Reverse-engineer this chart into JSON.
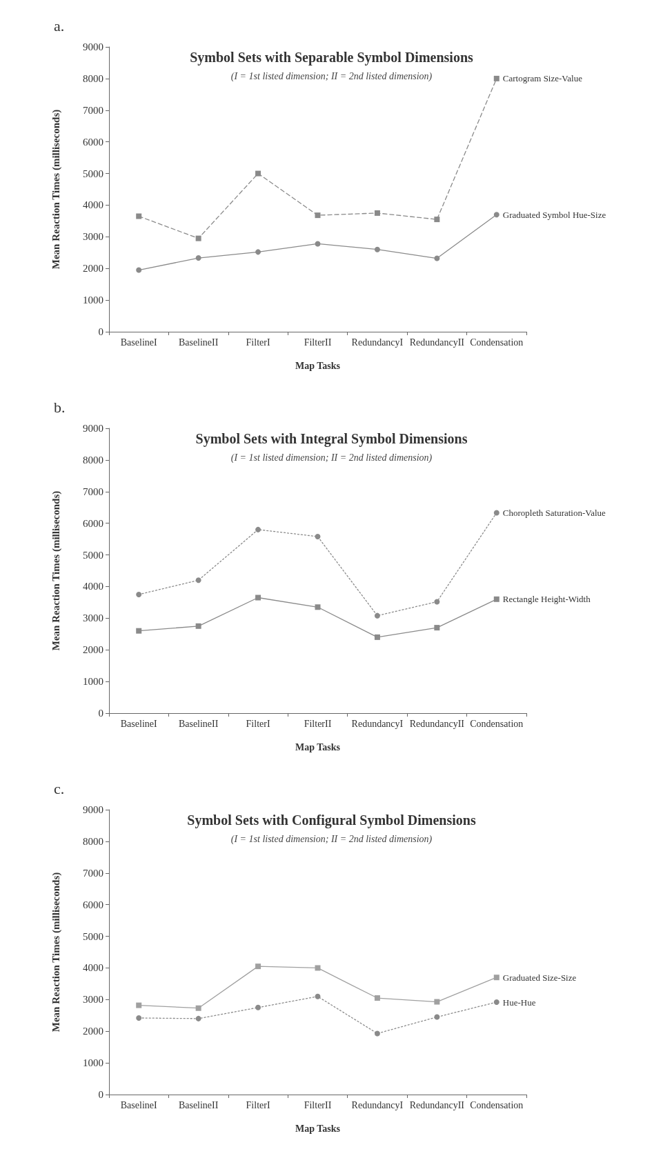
{
  "chart_data": [
    {
      "type": "line",
      "title": "Symbol Sets with Separable Symbol Dimensions",
      "subtitle": "(I = 1st listed dimension; II = 2nd listed dimension)",
      "xlabel": "Map Tasks",
      "ylabel": "Mean Reaction Times (milliseconds)",
      "annotations": [
        "a."
      ],
      "categories": [
        "BaselineI",
        "BaselineII",
        "FilterI",
        "FilterII",
        "RedundancyI",
        "RedundancyII",
        "Condensation"
      ],
      "series": [
        {
          "name": "Cartogram Size-Value",
          "color": "#8a8a8a",
          "marker": "square",
          "line_style": "dashed",
          "values": [
            3650,
            2950,
            5000,
            3680,
            3750,
            3550,
            8000
          ]
        },
        {
          "name": "Graduated Symbol Hue-Size",
          "color": "#8a8a8a",
          "marker": "circle",
          "line_style": "solid",
          "values": [
            1950,
            2330,
            2520,
            2780,
            2600,
            2320,
            3700
          ]
        }
      ],
      "ylim": [
        0,
        9000
      ],
      "yticks": [
        0,
        1000,
        2000,
        3000,
        4000,
        5000,
        6000,
        7000,
        8000,
        9000
      ],
      "grid": false,
      "legend": false
    },
    {
      "type": "line",
      "title": "Symbol Sets with Integral Symbol Dimensions",
      "subtitle": "(I = 1st listed dimension; II = 2nd listed dimension)",
      "xlabel": "Map Tasks",
      "ylabel": "Mean Reaction Times (milliseconds)",
      "annotations": [
        "b."
      ],
      "categories": [
        "BaselineI",
        "BaselineII",
        "FilterI",
        "FilterII",
        "RedundancyI",
        "RedundancyII",
        "Condensation"
      ],
      "series": [
        {
          "name": "Choropleth Saturation-Value",
          "color": "#8a8a8a",
          "marker": "circle",
          "line_style": "dotted",
          "values": [
            3750,
            4200,
            5800,
            5580,
            3080,
            3520,
            6330
          ]
        },
        {
          "name": "Rectangle Height-Width",
          "color": "#8a8a8a",
          "marker": "square",
          "line_style": "solid",
          "values": [
            2600,
            2750,
            3650,
            3350,
            2400,
            2700,
            3600
          ]
        }
      ],
      "ylim": [
        0,
        9000
      ],
      "yticks": [
        0,
        1000,
        2000,
        3000,
        4000,
        5000,
        6000,
        7000,
        8000,
        9000
      ],
      "grid": false,
      "legend": false
    },
    {
      "type": "line",
      "title": "Symbol Sets with Configural Symbol Dimensions",
      "subtitle": "(I = 1st listed dimension; II = 2nd listed dimension)",
      "xlabel": "Map Tasks",
      "ylabel": "Mean Reaction Times (milliseconds)",
      "annotations": [
        "c."
      ],
      "categories": [
        "BaselineI",
        "BaselineII",
        "FilterI",
        "FilterII",
        "RedundancyI",
        "RedundancyII",
        "Condensation"
      ],
      "series": [
        {
          "name": "Graduated Size-Size",
          "color": "#a0a0a0",
          "marker": "square",
          "line_style": "solid",
          "values": [
            2820,
            2730,
            4050,
            4000,
            3050,
            2930,
            3700
          ]
        },
        {
          "name": "Hue-Hue",
          "color": "#8a8a8a",
          "marker": "circle",
          "line_style": "dotted",
          "values": [
            2420,
            2400,
            2750,
            3100,
            1930,
            2450,
            2920
          ]
        }
      ],
      "ylim": [
        0,
        9000
      ],
      "yticks": [
        0,
        1000,
        2000,
        3000,
        4000,
        5000,
        6000,
        7000,
        8000,
        9000
      ],
      "grid": false,
      "legend": false
    }
  ]
}
